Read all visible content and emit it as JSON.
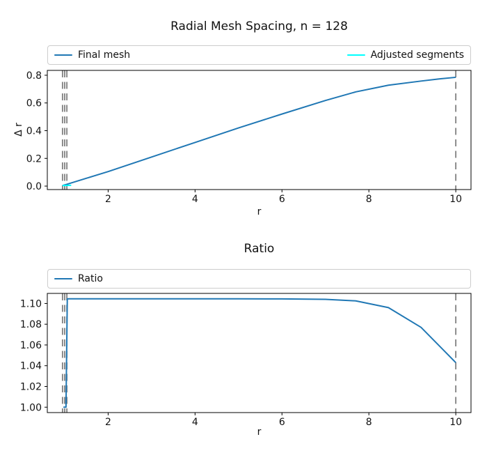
{
  "figure": {
    "background": "#ffffff",
    "frame_color": "#000000",
    "text_color": "#111111",
    "legend_border_color": "#cccccc"
  },
  "chart_data": [
    {
      "type": "line",
      "title": "Radial Mesh Spacing, n = 128",
      "xlabel": "r",
      "ylabel": "Δ r",
      "xlim": [
        0.6,
        10.35
      ],
      "ylim": [
        -0.025,
        0.835
      ],
      "grid": false,
      "legend_position": "above axes, expanded full width, 2 columns",
      "xticks": [
        2,
        4,
        6,
        8,
        10
      ],
      "xtick_labels": [
        "2",
        "4",
        "6",
        "8",
        "10"
      ],
      "yticks": [
        0.0,
        0.2,
        0.4,
        0.6,
        0.8
      ],
      "ytick_labels": [
        "0.0",
        "0.2",
        "0.4",
        "0.6",
        "0.8"
      ],
      "series": [
        {
          "name": "Final mesh",
          "color": "#1f77b4",
          "x": [
            0.95,
            1.05,
            2,
            3,
            4,
            5,
            6,
            7,
            7.7,
            8.45,
            9.2,
            9.6,
            10
          ],
          "y": [
            0.004,
            0.013,
            0.105,
            0.21,
            0.315,
            0.42,
            0.52,
            0.618,
            0.68,
            0.728,
            0.758,
            0.773,
            0.785
          ]
        },
        {
          "name": "Adjusted segments",
          "color": "#00ffff",
          "x": [
            0.95,
            1.15
          ],
          "y": [
            0.004,
            0.006
          ]
        }
      ],
      "vlines": {
        "x": [
          0.95,
          1.0,
          1.05,
          10
        ],
        "color": "#808080",
        "style": "dashed"
      }
    },
    {
      "type": "line",
      "title": "Ratio",
      "xlabel": "r",
      "ylabel": "",
      "xlim": [
        0.6,
        10.35
      ],
      "ylim": [
        0.9948,
        1.1097
      ],
      "grid": false,
      "legend_position": "above axes, expanded full width, single entry left-aligned",
      "xticks": [
        2,
        4,
        6,
        8,
        10
      ],
      "xtick_labels": [
        "2",
        "4",
        "6",
        "8",
        "10"
      ],
      "yticks": [
        1.0,
        1.02,
        1.04,
        1.06,
        1.08,
        1.1
      ],
      "ytick_labels": [
        "1.00",
        "1.02",
        "1.04",
        "1.06",
        "1.08",
        "1.10"
      ],
      "series": [
        {
          "name": "Ratio",
          "color": "#1f77b4",
          "x": [
            0.97,
            1.03,
            1.06,
            2,
            3,
            4,
            5,
            6,
            7,
            7.7,
            8.45,
            9.2,
            10
          ],
          "y": [
            1.0,
            1.0,
            1.1045,
            1.1045,
            1.1045,
            1.1045,
            1.1045,
            1.1044,
            1.104,
            1.1025,
            1.096,
            1.077,
            1.043
          ]
        }
      ],
      "vlines": {
        "x": [
          0.95,
          1.0,
          1.05,
          10
        ],
        "color": "#808080",
        "style": "dashed"
      }
    }
  ]
}
